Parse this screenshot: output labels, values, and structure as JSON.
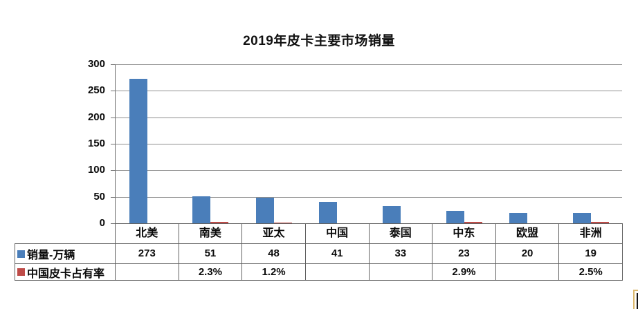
{
  "title": "2019年皮卡主要市场销量",
  "chart_data": {
    "type": "bar",
    "title": "2019年皮卡主要市场销量",
    "categories": [
      "北美",
      "南美",
      "亚太",
      "中国",
      "泰国",
      "中东",
      "欧盟",
      "非洲"
    ],
    "series": [
      {
        "name": "销量-万辆",
        "color": "#4A7EBA",
        "values": [
          273,
          51,
          48,
          41,
          33,
          23,
          20,
          19
        ],
        "values_display": [
          "273",
          "51",
          "48",
          "41",
          "33",
          "23",
          "20",
          "19"
        ]
      },
      {
        "name": "中国皮卡占有率",
        "color": "#BE4B48",
        "values": [
          null,
          2.3,
          1.2,
          null,
          null,
          2.9,
          null,
          2.5
        ],
        "values_display": [
          "",
          "2.3%",
          "1.2%",
          "",
          "",
          "2.9%",
          "",
          "2.5%"
        ]
      }
    ],
    "ylim": [
      0,
      300
    ],
    "ytick_interval": 50,
    "ytick_labels": [
      "300",
      "250",
      "200",
      "150",
      "100",
      "50",
      "0"
    ],
    "grid": true,
    "legend_position": "data-table-row-labels",
    "gridline_color": "#8E8E8E",
    "table_border_color": "#606060",
    "background_color": "#FFFFFF"
  },
  "watermark": {
    "description": "clipped-corner-logo",
    "border_color": "#DCB96E"
  }
}
